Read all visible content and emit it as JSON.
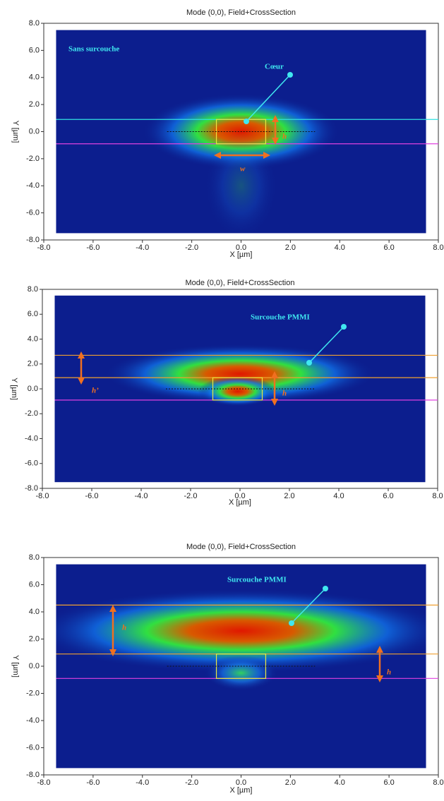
{
  "chart_data": [
    {
      "type": "heatmap",
      "title": "Mode (0,0), Field+CrossSection",
      "x_label": "X [µm]",
      "y_label": "Y [µm]",
      "xlim": [
        -8,
        8
      ],
      "ylim": [
        -8,
        8
      ],
      "xticks": [
        {
          "value": -8,
          "label": "-8.0"
        },
        {
          "value": -6,
          "label": "-6.0"
        },
        {
          "value": -4,
          "label": "-4.0"
        },
        {
          "value": -2,
          "label": "-2.0"
        },
        {
          "value": 0,
          "label": "0.0"
        },
        {
          "value": 2,
          "label": "2.0"
        },
        {
          "value": 4,
          "label": "4.0"
        },
        {
          "value": 6,
          "label": "6.0"
        },
        {
          "value": 8,
          "label": "8.0"
        }
      ],
      "yticks": [
        {
          "value": 8,
          "label": "8.0"
        },
        {
          "value": 6,
          "label": "6.0"
        },
        {
          "value": 4,
          "label": "4.0"
        },
        {
          "value": 2,
          "label": "2.0"
        },
        {
          "value": 0,
          "label": "0.0"
        },
        {
          "value": -2,
          "label": "-2.0"
        },
        {
          "value": -4,
          "label": "-4.0"
        },
        {
          "value": -6,
          "label": "-6.0"
        },
        {
          "value": -8,
          "label": "-8.0"
        }
      ],
      "field_extent": {
        "x": [
          -7.5,
          7.5
        ],
        "y": [
          -7.5,
          7.5
        ]
      },
      "hlines": [
        {
          "y": 0.9,
          "color": "#30e0e0"
        },
        {
          "y": -0.9,
          "color": "#e040e0"
        }
      ],
      "core": {
        "x": [
          -1,
          1
        ],
        "y": [
          -0.9,
          0.9
        ]
      },
      "annotations": [
        "Sans surcouche",
        "Cœur",
        "h",
        "w"
      ]
    },
    {
      "type": "heatmap",
      "title": "Mode (0,0), Field+CrossSection",
      "x_label": "X [µm]",
      "y_label": "Y [µm]",
      "xlim": [
        -8,
        8
      ],
      "ylim": [
        -8,
        8
      ],
      "xticks": [
        {
          "value": -8,
          "label": "-8.0"
        },
        {
          "value": -6,
          "label": "-6.0"
        },
        {
          "value": -4,
          "label": "-4.0"
        },
        {
          "value": -2,
          "label": "-2.0"
        },
        {
          "value": 0,
          "label": "0.0"
        },
        {
          "value": 2,
          "label": "2.0"
        },
        {
          "value": 4,
          "label": "4.0"
        },
        {
          "value": 6,
          "label": "6.0"
        },
        {
          "value": 8,
          "label": "8.0"
        }
      ],
      "yticks": [
        {
          "value": 8,
          "label": "8.0"
        },
        {
          "value": 6,
          "label": "6.0"
        },
        {
          "value": 4,
          "label": "4.0"
        },
        {
          "value": 2,
          "label": "2.0"
        },
        {
          "value": 0,
          "label": "0.0"
        },
        {
          "value": -2,
          "label": "-2.0"
        },
        {
          "value": -4,
          "label": "-4.0"
        },
        {
          "value": -6,
          "label": "-6.0"
        },
        {
          "value": -8,
          "label": "-8.0"
        }
      ],
      "field_extent": {
        "x": [
          -7.5,
          7.5
        ],
        "y": [
          -7.5,
          7.5
        ]
      },
      "hlines": [
        {
          "y": 2.7,
          "color": "#f0a030"
        },
        {
          "y": 0.9,
          "color": "#f0a030"
        },
        {
          "y": -0.9,
          "color": "#e040e0"
        }
      ],
      "core": {
        "x": [
          -1.1,
          0.9
        ],
        "y": [
          -0.9,
          0.9
        ]
      },
      "annotations": [
        "Surcouche PMMI",
        "h’",
        "h"
      ]
    },
    {
      "type": "heatmap",
      "title": "Mode (0,0), Field+CrossSection",
      "x_label": "X [µm]",
      "y_label": "Y [µm]",
      "xlim": [
        -8,
        8
      ],
      "ylim": [
        -8,
        8
      ],
      "xticks": [
        {
          "value": -8,
          "label": "-8.0"
        },
        {
          "value": -6,
          "label": "-6.0"
        },
        {
          "value": -4,
          "label": "-4.0"
        },
        {
          "value": -2,
          "label": "-2.0"
        },
        {
          "value": 0,
          "label": "0.0"
        },
        {
          "value": 2,
          "label": "2.0"
        },
        {
          "value": 4,
          "label": "4.0"
        },
        {
          "value": 6,
          "label": "6.0"
        },
        {
          "value": 8,
          "label": "8.0"
        }
      ],
      "yticks": [
        {
          "value": 8,
          "label": "8.0"
        },
        {
          "value": 6,
          "label": "6.0"
        },
        {
          "value": 4,
          "label": "4.0"
        },
        {
          "value": 2,
          "label": "2.0"
        },
        {
          "value": 0,
          "label": "0.0"
        },
        {
          "value": -2,
          "label": "-2.0"
        },
        {
          "value": -4,
          "label": "-4.0"
        },
        {
          "value": -6,
          "label": "-6.0"
        },
        {
          "value": -8,
          "label": "-8.0"
        }
      ],
      "field_extent": {
        "x": [
          -7.5,
          7.5
        ],
        "y": [
          -7.5,
          7.5
        ]
      },
      "hlines": [
        {
          "y": 4.5,
          "color": "#f0a030"
        },
        {
          "y": 0.9,
          "color": "#f0a030"
        },
        {
          "y": -0.9,
          "color": "#e040e0"
        }
      ],
      "core": {
        "x": [
          -1,
          1
        ],
        "y": [
          -0.9,
          0.9
        ]
      },
      "annotations": [
        "Surcouche PMMI",
        "h",
        "h"
      ]
    }
  ]
}
